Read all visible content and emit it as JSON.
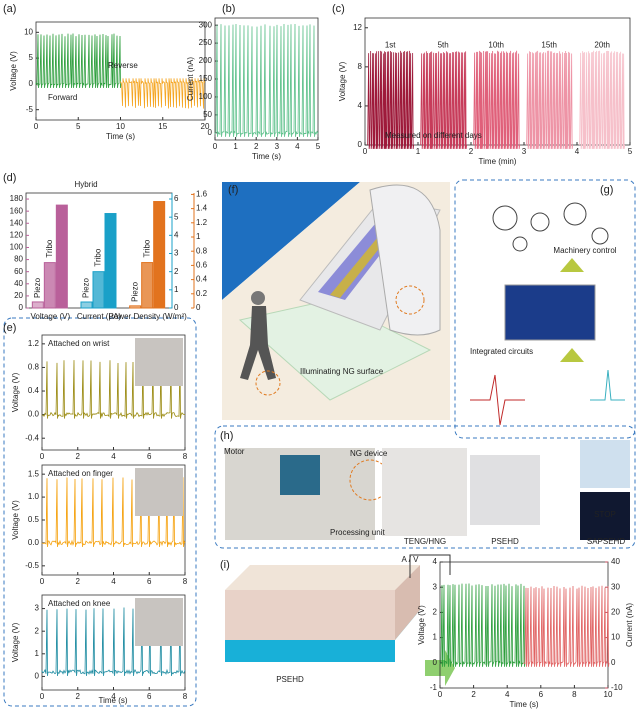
{
  "a": {
    "label": "(a)",
    "xlabel": "Time (s)",
    "ylabel": "Voltage (V)",
    "xlim": [
      0,
      20
    ],
    "ylim": [
      -7,
      12
    ],
    "xticks": [
      0,
      5,
      10,
      15,
      20
    ],
    "yticks": [
      -5,
      0,
      5,
      10
    ],
    "notes": [
      "Reverse",
      "Forward"
    ],
    "signals": [
      {
        "color": "#2a9d3a",
        "x0": 0,
        "x1": 10,
        "base": 0,
        "peak": 9.5
      },
      {
        "color": "#f5a623",
        "x0": 10,
        "x1": 20,
        "base": 0.3,
        "peak": -4.5
      }
    ]
  },
  "b": {
    "label": "(b)",
    "xlabel": "Time (s)",
    "ylabel": "Current (nA)",
    "xlim": [
      0,
      5
    ],
    "ylim": [
      -20,
      320
    ],
    "xticks": [
      0,
      1,
      2,
      3,
      4,
      5
    ],
    "yticks": [
      0,
      50,
      100,
      150,
      200,
      250,
      300
    ],
    "signals": [
      {
        "color": "#5cc08a",
        "x0": 0,
        "x1": 5,
        "base": 0,
        "peak": 300
      }
    ]
  },
  "c": {
    "label": "(c)",
    "xlabel": "Time (min)",
    "ylabel": "Voltage (V)",
    "xlim": [
      0,
      5
    ],
    "ylim": [
      0,
      13
    ],
    "xticks": [
      0,
      1,
      2,
      3,
      4,
      5
    ],
    "yticks": [
      0,
      4,
      8,
      12
    ],
    "notes": [
      "Measured on different days"
    ],
    "days": [
      "1st",
      "5th",
      "10th",
      "15th",
      "20th"
    ],
    "signals": [
      {
        "color": "#9e1a3a",
        "x0": 0.05,
        "x1": 0.9,
        "base": 0,
        "peak": 9.5
      },
      {
        "color": "#c73c5a",
        "x0": 1.05,
        "x1": 1.9,
        "base": 0,
        "peak": 9.5
      },
      {
        "color": "#e0607a",
        "x0": 2.05,
        "x1": 2.9,
        "base": 0,
        "peak": 9.5
      },
      {
        "color": "#ee94a6",
        "x0": 3.05,
        "x1": 3.9,
        "base": 0,
        "peak": 9.5
      },
      {
        "color": "#f6c0ca",
        "x0": 4.05,
        "x1": 4.9,
        "base": 0,
        "peak": 9.5
      }
    ]
  },
  "d": {
    "label": "(d)",
    "hybrid": "Hybrid",
    "series_names": [
      "Piezo",
      "Tribo"
    ],
    "ylim": [
      0,
      190
    ],
    "yticks": [
      0,
      20,
      40,
      60,
      80,
      100,
      120,
      140,
      160,
      180
    ],
    "y2lim": [
      0,
      6.33
    ],
    "y2ticks": [
      0,
      1,
      2,
      3,
      4,
      5,
      6
    ],
    "y3lim": [
      0,
      1.62
    ],
    "y3ticks": [
      0,
      0.2,
      0.4,
      0.6,
      0.8,
      1,
      1.2,
      1.4,
      1.6
    ],
    "groups": [
      {
        "category": "Voltage (V)",
        "axis": "y",
        "color": "#b9609a",
        "values": [
          10,
          75,
          170
        ]
      },
      {
        "category": "Current (μA)",
        "axis": "y2",
        "color": "#1aa0c8",
        "values": [
          0.33,
          2,
          5.2
        ]
      },
      {
        "category": "Power Density (W/m²)",
        "axis": "y3",
        "color": "#e2731e",
        "values": [
          0.03,
          0.64,
          1.5
        ]
      }
    ]
  },
  "e": {
    "label": "(e)",
    "xlabel": "Time (s)",
    "plots": [
      {
        "title": "Attached on wrist",
        "ylabel": "Voltage (V)",
        "xlim": [
          0,
          8
        ],
        "ylim": [
          -0.6,
          1.35
        ],
        "xticks": [
          0,
          2,
          4,
          6,
          8
        ],
        "yticks": [
          {
            "value": -0.4,
            "label": "-0.4"
          },
          {
            "value": 0,
            "label": "0.0"
          },
          0.4,
          0.8,
          1.2
        ],
        "signals": [
          {
            "color": "#9a8a10",
            "x0": 0,
            "x1": 8,
            "base": 0,
            "peak": 0.9
          }
        ]
      },
      {
        "title": "Attached on finger",
        "ylabel": "Voltage (V)",
        "xlim": [
          0,
          8
        ],
        "ylim": [
          -0.7,
          1.7
        ],
        "xticks": [
          0,
          2,
          4,
          6,
          8
        ],
        "yticks": [
          -0.5,
          {
            "value": 0,
            "label": "0.0"
          },
          0.5,
          {
            "value": 1,
            "label": "1.0"
          },
          1.5
        ],
        "signals": [
          {
            "color": "#f5a00a",
            "x0": 0,
            "x1": 8,
            "base": 0,
            "peak": 1.4
          }
        ]
      },
      {
        "title": "Attached on knee",
        "ylabel": "Voltage (V)",
        "xlim": [
          0,
          8
        ],
        "ylim": [
          -0.6,
          3.6
        ],
        "xticks": [
          0,
          2,
          4,
          6,
          8
        ],
        "yticks": [
          0,
          1,
          2,
          3
        ],
        "signals": [
          {
            "color": "#1a8aa0",
            "x0": 0,
            "x1": 8,
            "base": 0.2,
            "peak": 3
          }
        ]
      }
    ]
  },
  "f": {
    "label": "(f)",
    "caption": "Illuminating  NG surface"
  },
  "g": {
    "label": "(g)",
    "machinery": "Machinery control",
    "circuits": "Integrated circuits"
  },
  "h": {
    "label": "(h)",
    "motor": "Motor",
    "device": "NG device",
    "unit": "Processing unit",
    "photos": [
      "TENG/HNG",
      "PSEHD",
      "SAPSEHD"
    ],
    "stop": "STOP"
  },
  "i": {
    "label": "(i)",
    "device": "PSEHD",
    "meter": "A / V",
    "xlabel": "Time (s)",
    "ylabel": "Voltage (V)",
    "y2label": "Current (nA)",
    "xlim": [
      0,
      10
    ],
    "ylim": [
      -1,
      4
    ],
    "y2lim": [
      -10,
      40
    ],
    "xticks": [
      0,
      2,
      4,
      6,
      8,
      10
    ],
    "yticks": [
      -1,
      0,
      1,
      2,
      3,
      4
    ],
    "y2ticks": [
      -10,
      0,
      10,
      20,
      30,
      40
    ],
    "signals": [
      {
        "color": "#2a9d3a",
        "x0": 0,
        "x1": 5,
        "base": 0,
        "peak": 3.1,
        "axis": "y"
      },
      {
        "color": "#e06060",
        "x0": 5,
        "x1": 10,
        "base": 0,
        "peak": 30,
        "axis": "y2"
      }
    ]
  }
}
